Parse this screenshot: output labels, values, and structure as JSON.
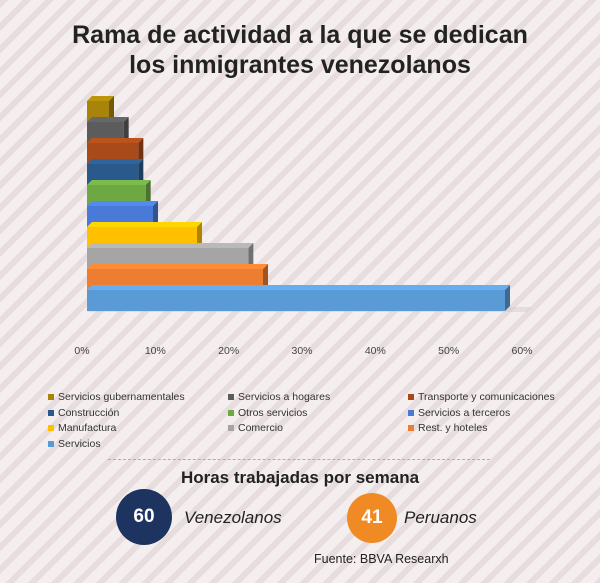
{
  "title_lines": [
    "Rama de actividad a la que se dedican",
    "los inmigrantes venezolanos"
  ],
  "chart_data": {
    "type": "bar",
    "orientation": "horizontal",
    "style": "3d",
    "title": "Rama de actividad a la que se dedican los inmigrantes venezolanos",
    "categories": [
      "Servicios gubernamentales",
      "Servicios a hogares",
      "Transporte y comunicaciones",
      "Construcción",
      "Otros servicios",
      "Servicios a terceros",
      "Manufactura",
      "Comercio",
      "Rest. y hoteles",
      "Servicios"
    ],
    "values": [
      3,
      5,
      7,
      7,
      8,
      9,
      15,
      22,
      24,
      57
    ],
    "colors": [
      "#a8850a",
      "#5c5c5c",
      "#a84a1a",
      "#2a5a8c",
      "#6ea843",
      "#4a7ad8",
      "#ffc000",
      "#a5a5a5",
      "#ed7d31",
      "#5b9bd5"
    ],
    "xlim": [
      0,
      60
    ],
    "xticks": [
      "0%",
      "10%",
      "20%",
      "30%",
      "40%",
      "50%",
      "60%"
    ],
    "legend_position": "bottom",
    "grid": false
  },
  "hours": {
    "title": "Horas trabajadas por semana",
    "venezolanos": {
      "value": "60",
      "label": "Venezolanos",
      "color": "#1d3461"
    },
    "peruanos": {
      "value": "41",
      "label": "Peruanos",
      "color": "#f08a24"
    }
  },
  "source": "Fuente: BBVA Researxh"
}
